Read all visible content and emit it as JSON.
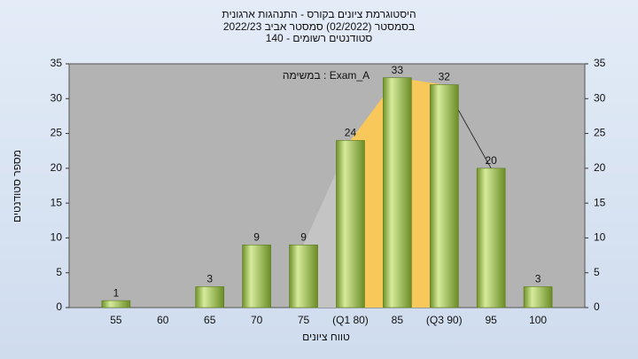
{
  "chart_data": {
    "type": "bar",
    "title": [
      "היסטוגרמת ציונים בקורס - התנהגות ארגונית",
      "בסמסטר  (02/2022)  סמסטר אביב 2022/23",
      "סטודנטים רשומים - 140"
    ],
    "annotation": "במשימה : Exam_A",
    "x_label": "טווח ציונים",
    "y_label": "מספר סטודנטים",
    "categories": [
      "55",
      "60",
      "65",
      "70",
      "75",
      "(Q1 80)",
      "85",
      "(Q3 90)",
      "95",
      "100"
    ],
    "values": [
      1,
      null,
      3,
      9,
      9,
      24,
      33,
      32,
      20,
      3
    ],
    "color": "#8fb33c",
    "ylim": [
      0,
      35
    ],
    "yticks": [
      0,
      5,
      10,
      15,
      20,
      25,
      30,
      35
    ],
    "y2lim": [
      0,
      35
    ],
    "y2ticks": [
      0,
      5,
      10,
      15,
      20,
      25,
      30,
      35
    ],
    "grid": false
  }
}
